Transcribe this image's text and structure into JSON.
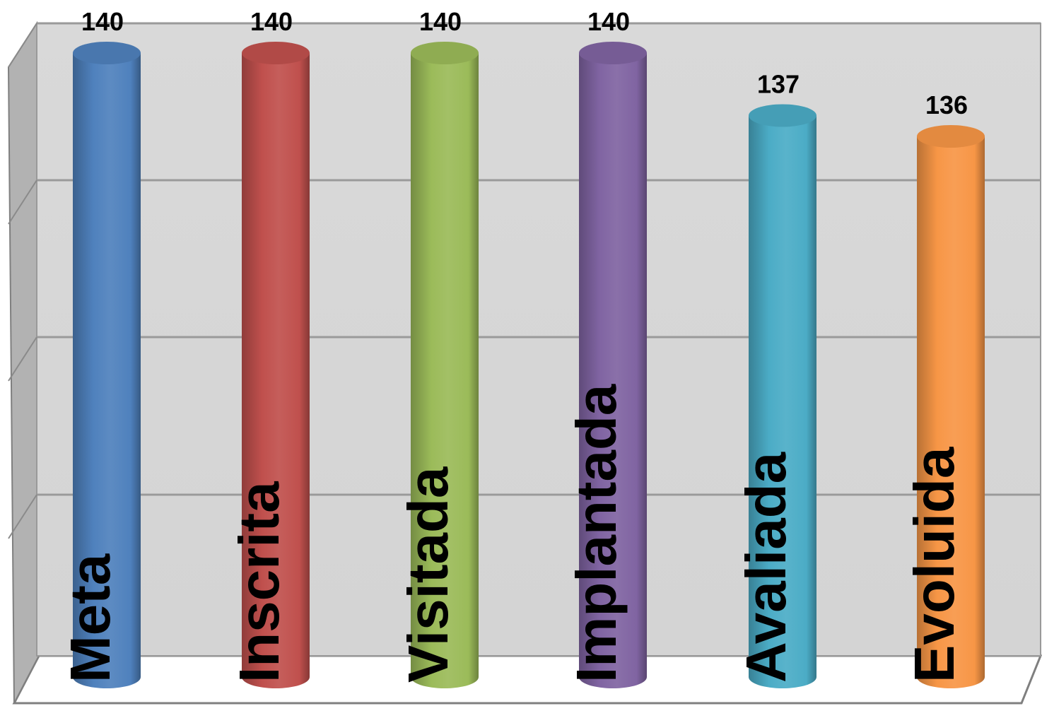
{
  "chart_data": {
    "type": "bar",
    "style": "3d-cylinder",
    "categories": [
      "Meta",
      "Inscrita",
      "Visitada",
      "Implantada",
      "Avaliada",
      "Evoluida"
    ],
    "values": [
      140,
      140,
      140,
      140,
      137,
      136
    ],
    "colors": [
      "#4F81BD",
      "#C0504D",
      "#9BBB59",
      "#8064A2",
      "#4BACC6",
      "#F79646"
    ],
    "data_labels": [
      "140",
      "140",
      "140",
      "140",
      "137",
      "136"
    ],
    "ylim": [
      100,
      140
    ],
    "grid": true,
    "legend": "none",
    "category_labels_position": "inside-bar-bottom-rotated"
  }
}
